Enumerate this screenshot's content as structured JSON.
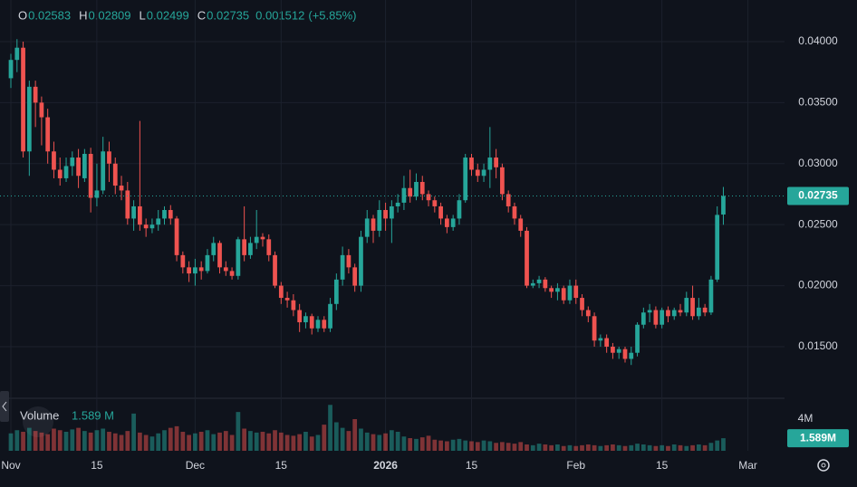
{
  "chart_data": {
    "type": "candlestick",
    "legend": {
      "items": [
        {
          "label": "O",
          "value": 0.02583
        },
        {
          "label": "H",
          "value": 0.02809
        },
        {
          "label": "L",
          "value": 0.02499
        },
        {
          "label": "C",
          "value": 0.02735
        }
      ],
      "change": 0.001512,
      "change_pct_label": "(+5.85%)"
    },
    "up_color": "#26a69a",
    "down_color": "#ef5350",
    "candles": [
      [
        0.037,
        0.039,
        0.0362,
        0.0385
      ],
      [
        0.0385,
        0.0402,
        0.0375,
        0.0395
      ],
      [
        0.0395,
        0.04,
        0.0305,
        0.031
      ],
      [
        0.031,
        0.0368,
        0.029,
        0.0363
      ],
      [
        0.0363,
        0.0368,
        0.033,
        0.035
      ],
      [
        0.035,
        0.0355,
        0.0315,
        0.0338
      ],
      [
        0.0338,
        0.0345,
        0.03,
        0.031
      ],
      [
        0.031,
        0.0318,
        0.0288,
        0.0295
      ],
      [
        0.0295,
        0.0305,
        0.0282,
        0.0288
      ],
      [
        0.0288,
        0.0305,
        0.0285,
        0.0298
      ],
      [
        0.0298,
        0.031,
        0.029,
        0.0305
      ],
      [
        0.0305,
        0.0312,
        0.028,
        0.029
      ],
      [
        0.0288,
        0.0312,
        0.0285,
        0.0308
      ],
      [
        0.0308,
        0.0313,
        0.026,
        0.0272
      ],
      [
        0.0272,
        0.03,
        0.0265,
        0.0278
      ],
      [
        0.0278,
        0.0322,
        0.0275,
        0.031
      ],
      [
        0.031,
        0.0318,
        0.0285,
        0.03
      ],
      [
        0.03,
        0.0305,
        0.0275,
        0.0282
      ],
      [
        0.0282,
        0.029,
        0.027,
        0.0278
      ],
      [
        0.0278,
        0.0285,
        0.025,
        0.0255
      ],
      [
        0.0255,
        0.027,
        0.0245,
        0.0265
      ],
      [
        0.0265,
        0.0335,
        0.0245,
        0.025
      ],
      [
        0.025,
        0.0255,
        0.024,
        0.0247
      ],
      [
        0.0247,
        0.0255,
        0.0243,
        0.025
      ],
      [
        0.025,
        0.0262,
        0.0245,
        0.0255
      ],
      [
        0.0255,
        0.0265,
        0.025,
        0.0262
      ],
      [
        0.0262,
        0.0266,
        0.025,
        0.0255
      ],
      [
        0.0255,
        0.0257,
        0.022,
        0.0225
      ],
      [
        0.0225,
        0.0228,
        0.021,
        0.0215
      ],
      [
        0.0215,
        0.022,
        0.0203,
        0.021
      ],
      [
        0.021,
        0.0222,
        0.02,
        0.0215
      ],
      [
        0.0215,
        0.022,
        0.0205,
        0.0212
      ],
      [
        0.0212,
        0.023,
        0.021,
        0.0225
      ],
      [
        0.0225,
        0.024,
        0.022,
        0.0235
      ],
      [
        0.0235,
        0.0237,
        0.021,
        0.0215
      ],
      [
        0.0215,
        0.022,
        0.0208,
        0.0212
      ],
      [
        0.0212,
        0.0215,
        0.0205,
        0.0208
      ],
      [
        0.0208,
        0.024,
        0.0205,
        0.0238
      ],
      [
        0.0238,
        0.0265,
        0.022,
        0.0225
      ],
      [
        0.0225,
        0.024,
        0.0222,
        0.0235
      ],
      [
        0.0235,
        0.0262,
        0.023,
        0.024
      ],
      [
        0.024,
        0.0243,
        0.0232,
        0.0238
      ],
      [
        0.0238,
        0.0242,
        0.022,
        0.0225
      ],
      [
        0.0225,
        0.0228,
        0.0198,
        0.02
      ],
      [
        0.02,
        0.0203,
        0.0185,
        0.019
      ],
      [
        0.019,
        0.0195,
        0.0182,
        0.0188
      ],
      [
        0.0188,
        0.0193,
        0.0175,
        0.018
      ],
      [
        0.018,
        0.0185,
        0.0162,
        0.017
      ],
      [
        0.017,
        0.0178,
        0.0165,
        0.0175
      ],
      [
        0.0175,
        0.0177,
        0.016,
        0.0165
      ],
      [
        0.0165,
        0.0175,
        0.0162,
        0.0172
      ],
      [
        0.0172,
        0.0175,
        0.0162,
        0.0165
      ],
      [
        0.0165,
        0.019,
        0.0162,
        0.0185
      ],
      [
        0.0185,
        0.021,
        0.018,
        0.0205
      ],
      [
        0.0205,
        0.0232,
        0.02,
        0.0225
      ],
      [
        0.0225,
        0.023,
        0.021,
        0.0215
      ],
      [
        0.0215,
        0.0218,
        0.0195,
        0.02
      ],
      [
        0.02,
        0.0245,
        0.0195,
        0.024
      ],
      [
        0.024,
        0.0262,
        0.0235,
        0.0255
      ],
      [
        0.0255,
        0.0258,
        0.0235,
        0.0245
      ],
      [
        0.0245,
        0.027,
        0.024,
        0.0262
      ],
      [
        0.0262,
        0.0268,
        0.0245,
        0.0255
      ],
      [
        0.0255,
        0.027,
        0.0235,
        0.0265
      ],
      [
        0.0265,
        0.0275,
        0.026,
        0.0268
      ],
      [
        0.0268,
        0.029,
        0.0262,
        0.028
      ],
      [
        0.028,
        0.0295,
        0.0268,
        0.0273
      ],
      [
        0.0273,
        0.0292,
        0.027,
        0.0285
      ],
      [
        0.0285,
        0.029,
        0.027,
        0.0275
      ],
      [
        0.0275,
        0.0278,
        0.0265,
        0.027
      ],
      [
        0.027,
        0.0273,
        0.026,
        0.0265
      ],
      [
        0.0265,
        0.0268,
        0.025,
        0.0255
      ],
      [
        0.0255,
        0.0258,
        0.0243,
        0.0248
      ],
      [
        0.0248,
        0.0258,
        0.0245,
        0.0255
      ],
      [
        0.0255,
        0.0275,
        0.025,
        0.027
      ],
      [
        0.027,
        0.0308,
        0.0268,
        0.0305
      ],
      [
        0.0305,
        0.0308,
        0.029,
        0.0295
      ],
      [
        0.0295,
        0.03,
        0.0285,
        0.029
      ],
      [
        0.029,
        0.03,
        0.0285,
        0.0295
      ],
      [
        0.0295,
        0.033,
        0.028,
        0.0305
      ],
      [
        0.0305,
        0.0312,
        0.0288,
        0.0297
      ],
      [
        0.0297,
        0.03,
        0.027,
        0.0275
      ],
      [
        0.0275,
        0.0278,
        0.026,
        0.0265
      ],
      [
        0.0265,
        0.0268,
        0.025,
        0.0255
      ],
      [
        0.0255,
        0.0258,
        0.024,
        0.0245
      ],
      [
        0.0245,
        0.0248,
        0.0198,
        0.02
      ],
      [
        0.02,
        0.0205,
        0.0198,
        0.0202
      ],
      [
        0.0202,
        0.0208,
        0.0198,
        0.0205
      ],
      [
        0.0205,
        0.0207,
        0.0195,
        0.0198
      ],
      [
        0.0198,
        0.02,
        0.019,
        0.0195
      ],
      [
        0.0195,
        0.0202,
        0.0188,
        0.0198
      ],
      [
        0.0198,
        0.02,
        0.0185,
        0.0188
      ],
      [
        0.0188,
        0.0205,
        0.0185,
        0.02
      ],
      [
        0.02,
        0.0205,
        0.0185,
        0.019
      ],
      [
        0.019,
        0.0193,
        0.0175,
        0.018
      ],
      [
        0.018,
        0.0183,
        0.017,
        0.0175
      ],
      [
        0.0175,
        0.0178,
        0.015,
        0.0155
      ],
      [
        0.0155,
        0.016,
        0.015,
        0.0157
      ],
      [
        0.0157,
        0.016,
        0.0145,
        0.015
      ],
      [
        0.015,
        0.0153,
        0.014,
        0.0145
      ],
      [
        0.0145,
        0.015,
        0.014,
        0.0148
      ],
      [
        0.0148,
        0.015,
        0.0137,
        0.014
      ],
      [
        0.014,
        0.015,
        0.0135,
        0.0145
      ],
      [
        0.0145,
        0.017,
        0.0142,
        0.0168
      ],
      [
        0.0168,
        0.0182,
        0.0165,
        0.0178
      ],
      [
        0.0178,
        0.0185,
        0.017,
        0.018
      ],
      [
        0.018,
        0.0183,
        0.0165,
        0.0168
      ],
      [
        0.0168,
        0.0182,
        0.0165,
        0.018
      ],
      [
        0.018,
        0.0183,
        0.017,
        0.0175
      ],
      [
        0.0175,
        0.0182,
        0.0172,
        0.018
      ],
      [
        0.018,
        0.0185,
        0.0175,
        0.0178
      ],
      [
        0.0178,
        0.0195,
        0.0175,
        0.019
      ],
      [
        0.019,
        0.02,
        0.0172,
        0.0175
      ],
      [
        0.0175,
        0.019,
        0.0172,
        0.0182
      ],
      [
        0.0182,
        0.0185,
        0.0175,
        0.0178
      ],
      [
        0.0178,
        0.0208,
        0.0176,
        0.0205
      ],
      [
        0.0205,
        0.0265,
        0.0203,
        0.0258
      ],
      [
        0.02583,
        0.02809,
        0.02499,
        0.02735
      ]
    ],
    "volume": [
      2.2,
      2.6,
      2.4,
      2.9,
      2.5,
      2.3,
      2.1,
      2.8,
      2.6,
      2.4,
      2.7,
      2.9,
      2.5,
      2.3,
      2.6,
      2.8,
      2.4,
      2.2,
      2.0,
      2.5,
      4.7,
      2.3,
      2.0,
      1.8,
      2.2,
      2.6,
      2.9,
      3.1,
      2.4,
      2.0,
      2.2,
      2.4,
      2.6,
      2.1,
      2.3,
      2.5,
      2.0,
      4.9,
      2.8,
      2.5,
      2.3,
      2.4,
      2.2,
      2.6,
      2.3,
      2.0,
      1.9,
      2.1,
      2.4,
      1.8,
      2.0,
      3.3,
      5.8,
      3.6,
      2.9,
      2.5,
      4.0,
      2.8,
      2.3,
      2.1,
      2.0,
      2.2,
      2.6,
      2.4,
      1.8,
      1.6,
      1.5,
      1.7,
      1.9,
      1.4,
      1.3,
      1.2,
      1.4,
      1.5,
      1.3,
      1.2,
      1.1,
      1.3,
      1.2,
      1.0,
      1.1,
      1.0,
      0.9,
      1.1,
      0.8,
      0.7,
      0.9,
      0.8,
      0.7,
      0.8,
      0.6,
      0.7,
      0.6,
      0.7,
      0.8,
      0.7,
      0.6,
      0.7,
      0.8,
      0.7,
      0.6,
      0.7,
      0.9,
      0.8,
      0.7,
      0.6,
      0.7,
      0.6,
      0.8,
      0.7,
      0.6,
      0.7,
      0.8,
      0.7,
      1.0,
      1.3,
      1.589
    ],
    "volume_title": "Volume",
    "volume_value_label": "1.589 M",
    "volume_tag_label": "1.589M",
    "volume_ylim": [
      0,
      6.63
    ],
    "volume_yticks": [
      {
        "value": 4,
        "label": "4M"
      }
    ],
    "xlim": [
      -1.77,
      125.96
    ],
    "xticks": [
      {
        "value": 0,
        "label": "Nov"
      },
      {
        "value": 14,
        "label": "15"
      },
      {
        "value": 30,
        "label": "Dec"
      },
      {
        "value": 44,
        "label": "15"
      },
      {
        "value": 61,
        "label": "2026"
      },
      {
        "value": 75,
        "label": "15"
      },
      {
        "value": 92,
        "label": "Feb"
      },
      {
        "value": 106,
        "label": "15"
      },
      {
        "value": 120,
        "label": "Mar"
      }
    ],
    "ylim": [
      0.01077,
      0.04341
    ],
    "yticks": [
      {
        "value": 0.015,
        "label": "0.01500"
      },
      {
        "value": 0.02,
        "label": "0.02000"
      },
      {
        "value": 0.025,
        "label": "0.02500"
      },
      {
        "value": 0.03,
        "label": "0.03000"
      },
      {
        "value": 0.035,
        "label": "0.03500"
      },
      {
        "value": 0.04,
        "label": "0.04000"
      }
    ],
    "grid": true
  }
}
